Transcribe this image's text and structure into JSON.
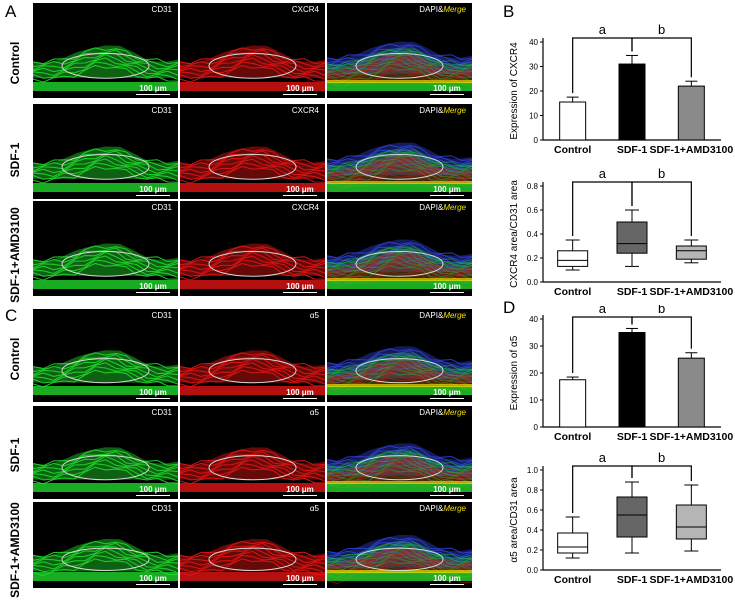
{
  "panel_letters": {
    "A": "A",
    "B": "B",
    "C": "C",
    "D": "D"
  },
  "rows": [
    "Control",
    "SDF-1",
    "SDF-1+AMD3100"
  ],
  "panelA": {
    "cols": [
      "CD31",
      "CXCR4",
      "DAPI&",
      "Merge"
    ],
    "scale": "100 μm"
  },
  "panelC": {
    "cols": [
      "CD31",
      "α5",
      "DAPI&",
      "Merge"
    ],
    "scale": "100 μm"
  },
  "colors": {
    "green": "#1fd62a",
    "red": "#e11414",
    "blue": "#2f3fd6",
    "yellow": "#f5e000"
  },
  "chart_data": [
    {
      "id": "B-top",
      "type": "bar",
      "categories": [
        "Control",
        "SDF-1",
        "SDF-1+AMD3100"
      ],
      "values": [
        15.5,
        31,
        22
      ],
      "errors": [
        2,
        3.5,
        2
      ],
      "fills": [
        "#ffffff",
        "#000000",
        "#8a8a8a"
      ],
      "ylabel": "Expression of CXCR4",
      "ylim": [
        0,
        40
      ],
      "yticks": [
        0,
        10,
        20,
        30,
        40
      ],
      "brackets": [
        {
          "from": 0,
          "to": 1,
          "label": "a"
        },
        {
          "from": 1,
          "to": 2,
          "label": "b"
        }
      ]
    },
    {
      "id": "B-bottom",
      "type": "box",
      "categories": [
        "Control",
        "SDF-1",
        "SDF-1+AMD3100"
      ],
      "boxes": [
        {
          "min": 0.1,
          "q1": 0.13,
          "median": 0.18,
          "q3": 0.26,
          "max": 0.35,
          "fill": "#ffffff"
        },
        {
          "min": 0.13,
          "q1": 0.24,
          "median": 0.32,
          "q3": 0.5,
          "max": 0.6,
          "fill": "#666666"
        },
        {
          "min": 0.16,
          "q1": 0.19,
          "median": 0.26,
          "q3": 0.3,
          "max": 0.35,
          "fill": "#b5b5b5"
        }
      ],
      "ylabel": "CXCR4 area/CD31 area",
      "ylim": [
        0,
        0.8
      ],
      "yticks": [
        0.0,
        0.2,
        0.4,
        0.6,
        0.8
      ],
      "brackets": [
        {
          "from": 0,
          "to": 1,
          "label": "a"
        },
        {
          "from": 1,
          "to": 2,
          "label": "b"
        }
      ]
    },
    {
      "id": "D-top",
      "type": "bar",
      "categories": [
        "Control",
        "SDF-1",
        "SDF-1+AMD3100"
      ],
      "values": [
        17.5,
        35,
        25.5
      ],
      "errors": [
        1,
        1.5,
        2
      ],
      "fills": [
        "#ffffff",
        "#000000",
        "#8a8a8a"
      ],
      "ylabel": "Expression of α5",
      "ylim": [
        0,
        40
      ],
      "yticks": [
        0,
        10,
        20,
        30,
        40
      ],
      "brackets": [
        {
          "from": 0,
          "to": 1,
          "label": "a"
        },
        {
          "from": 1,
          "to": 2,
          "label": "b"
        }
      ]
    },
    {
      "id": "D-bottom",
      "type": "box",
      "categories": [
        "Control",
        "SDF-1",
        "SDF-1+AMD3100"
      ],
      "boxes": [
        {
          "min": 0.12,
          "q1": 0.17,
          "median": 0.23,
          "q3": 0.37,
          "max": 0.53,
          "fill": "#ffffff"
        },
        {
          "min": 0.17,
          "q1": 0.33,
          "median": 0.55,
          "q3": 0.73,
          "max": 0.88,
          "fill": "#666666"
        },
        {
          "min": 0.19,
          "q1": 0.31,
          "median": 0.43,
          "q3": 0.65,
          "max": 0.85,
          "fill": "#b5b5b5"
        }
      ],
      "ylabel": "α5 area/CD31 area",
      "ylim": [
        0,
        1.0
      ],
      "yticks": [
        0.0,
        0.2,
        0.4,
        0.6,
        0.8,
        1.0
      ],
      "brackets": [
        {
          "from": 0,
          "to": 1,
          "label": "a"
        },
        {
          "from": 1,
          "to": 2,
          "label": "b"
        }
      ]
    }
  ]
}
